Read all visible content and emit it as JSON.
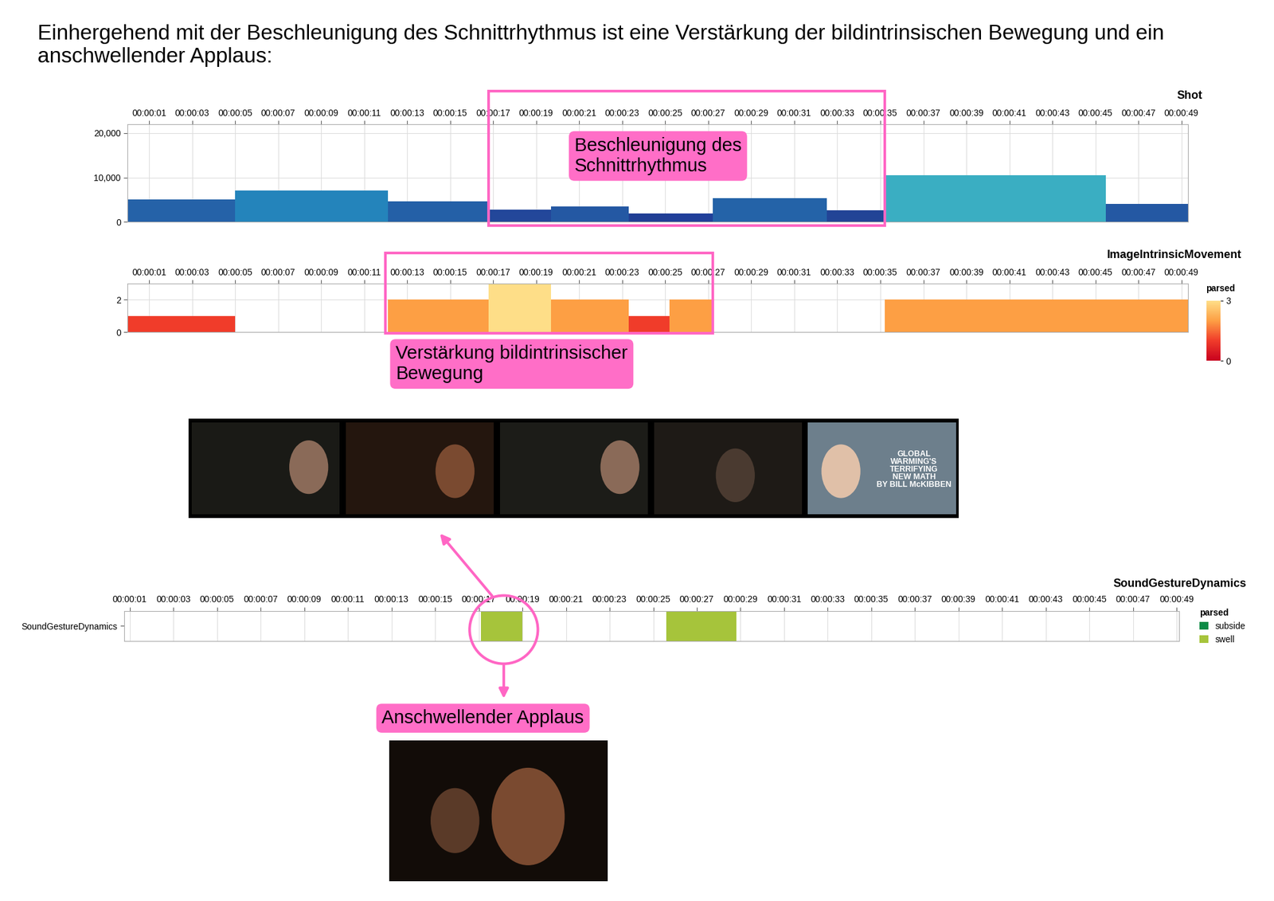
{
  "title": "Einhergehend mit der Beschleunigung des Schnittrhythmus ist eine Verstärkung der bildintrinsischen Bewegung und ein anschwellender Applaus:",
  "thumbnail_text": "GLOBAL\nWARMING'S\nTERRIFYING\nNEW MATH\nBY BILL McKIBBEN",
  "chart_data": [
    {
      "type": "bar",
      "title": "Shot",
      "grid": true,
      "starts": [
        0,
        5.0,
        12.1,
        16.8,
        19.7,
        23.3,
        25.2,
        27.2,
        32.5,
        35.2,
        45.5
      ],
      "ends": [
        5.0,
        12.1,
        16.8,
        19.7,
        23.3,
        25.2,
        27.2,
        32.5,
        35.2,
        45.5,
        49.3
      ],
      "values": [
        5000,
        7000,
        4600,
        2800,
        3500,
        1900,
        1900,
        5400,
        2600,
        10500,
        4100
      ],
      "colors": [
        "#2562a8",
        "#2484bb",
        "#2460a7",
        "#23479a",
        "#2458a3",
        "#213f95",
        "#21409a",
        "#2463a8",
        "#224496",
        "#3aaec2",
        "#2458a3"
      ],
      "xlim": [
        0,
        49.3
      ],
      "ylim": [
        0,
        22000
      ],
      "yticks": [
        0,
        {
          "value": 10000,
          "label": "10,000"
        },
        {
          "value": 20000,
          "label": "20,000"
        }
      ],
      "xticks": [
        {
          "value": 1,
          "label": "00:00:01"
        },
        {
          "value": 3,
          "label": "00:00:03"
        },
        {
          "value": 5,
          "label": "00:00:05"
        },
        {
          "value": 7,
          "label": "00:00:07"
        },
        {
          "value": 9,
          "label": "00:00:09"
        },
        {
          "value": 11,
          "label": "00:00:11"
        },
        {
          "value": 13,
          "label": "00:00:13"
        },
        {
          "value": 15,
          "label": "00:00:15"
        },
        {
          "value": 17,
          "label": "00:00:17"
        },
        {
          "value": 19,
          "label": "00:00:19"
        },
        {
          "value": 21,
          "label": "00:00:21"
        },
        {
          "value": 23,
          "label": "00:00:23"
        },
        {
          "value": 25,
          "label": "00:00:25"
        },
        {
          "value": 27,
          "label": "00:00:27"
        },
        {
          "value": 29,
          "label": "00:00:29"
        },
        {
          "value": 31,
          "label": "00:00:31"
        },
        {
          "value": 33,
          "label": "00:00:33"
        },
        {
          "value": 35,
          "label": "00:00:35"
        },
        {
          "value": 37,
          "label": "00:00:37"
        },
        {
          "value": 39,
          "label": "00:00:39"
        },
        {
          "value": 41,
          "label": "00:00:41"
        },
        {
          "value": 43,
          "label": "00:00:43"
        },
        {
          "value": 45,
          "label": "00:00:45"
        },
        {
          "value": 47,
          "label": "00:00:47"
        },
        {
          "value": 49,
          "label": "00:00:49"
        }
      ],
      "annotations": [
        {
          "text": "Beschleunigung des\nSchnittrhythmus",
          "span": [
            16.8,
            35.2
          ]
        }
      ]
    },
    {
      "type": "bar",
      "title": "ImageIntrinsicMovement",
      "grid": true,
      "starts": [
        0,
        12.1,
        16.8,
        19.7,
        23.3,
        25.2,
        35.2,
        45.5
      ],
      "ends": [
        5.0,
        16.8,
        19.7,
        23.3,
        25.2,
        27.2,
        45.5,
        49.3
      ],
      "values": [
        1,
        2,
        3,
        2,
        1,
        2,
        2,
        2
      ],
      "colors": [
        "#f03c2a",
        "#fd9f44",
        "#fede88",
        "#fd9f44",
        "#f03c2a",
        "#fd9f44",
        "#fd9f44",
        "#fd9f44"
      ],
      "xlim": [
        0,
        49.3
      ],
      "ylim": [
        0,
        3
      ],
      "yticks": [
        0,
        2
      ],
      "xticks": [
        {
          "value": 1,
          "label": "00:00:01"
        },
        {
          "value": 3,
          "label": "00:00:03"
        },
        {
          "value": 5,
          "label": "00:00:05"
        },
        {
          "value": 7,
          "label": "00:00:07"
        },
        {
          "value": 9,
          "label": "00:00:09"
        },
        {
          "value": 11,
          "label": "00:00:11"
        },
        {
          "value": 13,
          "label": "00:00:13"
        },
        {
          "value": 15,
          "label": "00:00:15"
        },
        {
          "value": 17,
          "label": "00:00:17"
        },
        {
          "value": 19,
          "label": "00:00:19"
        },
        {
          "value": 21,
          "label": "00:00:21"
        },
        {
          "value": 23,
          "label": "00:00:23"
        },
        {
          "value": 25,
          "label": "00:00:25"
        },
        {
          "value": 27,
          "label": "00:00:27"
        },
        {
          "value": 29,
          "label": "00:00:29"
        },
        {
          "value": 31,
          "label": "00:00:31"
        },
        {
          "value": 33,
          "label": "00:00:33"
        },
        {
          "value": 35,
          "label": "00:00:35"
        },
        {
          "value": 37,
          "label": "00:00:37"
        },
        {
          "value": 39,
          "label": "00:00:39"
        },
        {
          "value": 41,
          "label": "00:00:41"
        },
        {
          "value": 43,
          "label": "00:00:43"
        },
        {
          "value": 45,
          "label": "00:00:45"
        },
        {
          "value": 47,
          "label": "00:00:47"
        },
        {
          "value": 49,
          "label": "00:00:49"
        }
      ],
      "colorbar": {
        "label": "parsed",
        "range": [
          0,
          3
        ],
        "ticks": [
          0,
          3
        ]
      },
      "annotations": [
        {
          "text": "Verstärkung bildintrinsischer\nBewegung",
          "span": [
            12.0,
            27.2
          ]
        }
      ]
    },
    {
      "type": "bar",
      "orientation": "horizontal",
      "title": "SoundGestureDynamics",
      "grid": true,
      "categories": [
        "SoundGestureDynamics"
      ],
      "series": [
        {
          "name": "subside",
          "color": "#0b8a45",
          "starts": [],
          "ends": []
        },
        {
          "name": "swell",
          "color": "#a6c43b",
          "starts": [
            17.1,
            25.6
          ],
          "ends": [
            19.0,
            28.8
          ]
        }
      ],
      "legend": "upper left",
      "legend_title": "parsed",
      "xlim": [
        0.75,
        49.1
      ],
      "xticks": [
        {
          "value": 1,
          "label": "00:00:01"
        },
        {
          "value": 3,
          "label": "00:00:03"
        },
        {
          "value": 5,
          "label": "00:00:05"
        },
        {
          "value": 7,
          "label": "00:00:07"
        },
        {
          "value": 9,
          "label": "00:00:09"
        },
        {
          "value": 11,
          "label": "00:00:11"
        },
        {
          "value": 13,
          "label": "00:00:13"
        },
        {
          "value": 15,
          "label": "00:00:15"
        },
        {
          "value": 17,
          "label": "00:00:17"
        },
        {
          "value": 19,
          "label": "00:00:19"
        },
        {
          "value": 21,
          "label": "00:00:21"
        },
        {
          "value": 23,
          "label": "00:00:23"
        },
        {
          "value": 25,
          "label": "00:00:25"
        },
        {
          "value": 27,
          "label": "00:00:27"
        },
        {
          "value": 29,
          "label": "00:00:29"
        },
        {
          "value": 31,
          "label": "00:00:31"
        },
        {
          "value": 33,
          "label": "00:00:33"
        },
        {
          "value": 35,
          "label": "00:00:35"
        },
        {
          "value": 37,
          "label": "00:00:37"
        },
        {
          "value": 39,
          "label": "00:00:39"
        },
        {
          "value": 41,
          "label": "00:00:41"
        },
        {
          "value": 43,
          "label": "00:00:43"
        },
        {
          "value": 45,
          "label": "00:00:45"
        },
        {
          "value": 47,
          "label": "00:00:47"
        },
        {
          "value": 49,
          "label": "00:00:49"
        }
      ],
      "annotations": [
        {
          "text": "Anschwellender Applaus"
        }
      ]
    }
  ]
}
